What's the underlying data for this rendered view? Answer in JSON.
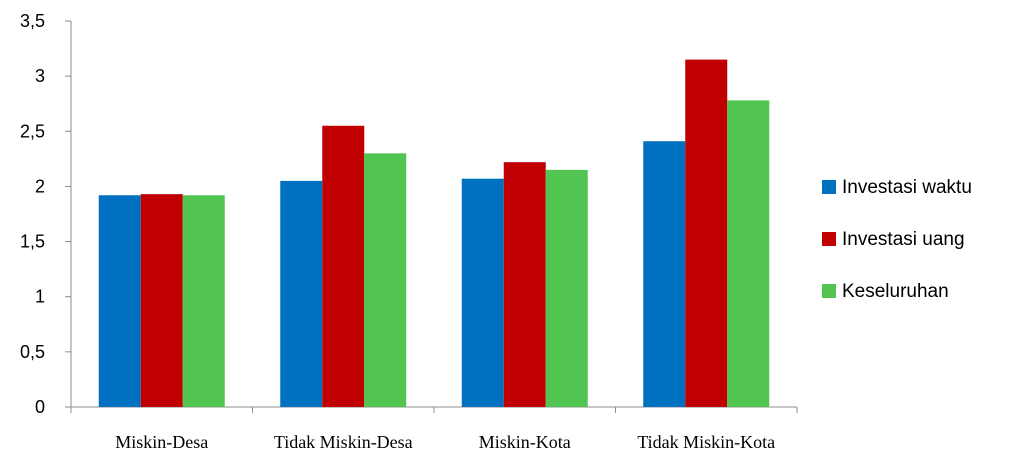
{
  "chart_data": {
    "type": "bar",
    "categories": [
      "Miskin-Desa",
      "Tidak Miskin-Desa",
      "Miskin-Kota",
      "Tidak Miskin-Kota"
    ],
    "series": [
      {
        "name": "Investasi waktu",
        "values": [
          1.92,
          2.05,
          2.07,
          2.41
        ],
        "color": "#0070c0"
      },
      {
        "name": "Investasi uang",
        "values": [
          1.93,
          2.55,
          2.22,
          3.15
        ],
        "color": "#c00000"
      },
      {
        "name": "Keseluruhan",
        "values": [
          1.92,
          2.3,
          2.15,
          2.78
        ],
        "color": "#51c452"
      }
    ],
    "yticks": [
      "0",
      "0,5",
      "1",
      "1,5",
      "2",
      "2,5",
      "3",
      "3,5"
    ],
    "ylim": [
      0,
      3.5
    ],
    "grid": false,
    "legend_position": "right"
  }
}
